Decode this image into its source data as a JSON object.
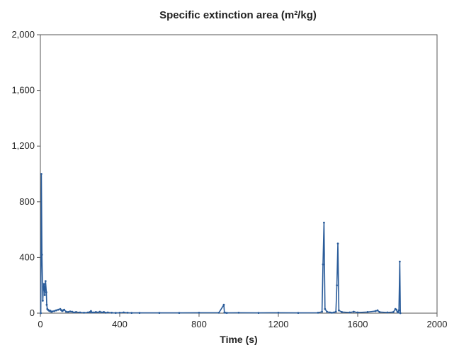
{
  "chart_data": {
    "type": "line",
    "title": "Specific extinction area (m²/kg)",
    "xlabel": "Time (s)",
    "ylabel": "",
    "xlim": [
      0,
      2000
    ],
    "ylim": [
      0,
      2000
    ],
    "x_ticks": [
      0,
      400,
      800,
      1200,
      1600,
      2000
    ],
    "x_tick_labels": [
      "0",
      "400",
      "800",
      "1200",
      "1600",
      "2000"
    ],
    "y_ticks": [
      0,
      400,
      800,
      1200,
      1600,
      2000
    ],
    "y_tick_labels": [
      "0",
      "400",
      "800",
      "1,200",
      "1,600",
      "2,000"
    ],
    "grid": false,
    "legend": "none",
    "series": [
      {
        "color": "#2a5c9a",
        "x": [
          2,
          5,
          8,
          12,
          15,
          18,
          22,
          26,
          30,
          32,
          35,
          38,
          42,
          46,
          50,
          55,
          60,
          70,
          80,
          90,
          100,
          105,
          110,
          115,
          120,
          130,
          140,
          150,
          160,
          170,
          180,
          200,
          220,
          240,
          250,
          255,
          260,
          270,
          280,
          290,
          300,
          310,
          320,
          330,
          340,
          360,
          380,
          400,
          420,
          440,
          460,
          500,
          600,
          700,
          800,
          900,
          925,
          928,
          932,
          940,
          1000,
          1100,
          1200,
          1300,
          1400,
          1420,
          1425,
          1430,
          1435,
          1445,
          1460,
          1470,
          1480,
          1490,
          1495,
          1500,
          1505,
          1520,
          1560,
          1580,
          1600,
          1650,
          1690,
          1700,
          1710,
          1750,
          1780,
          1790,
          1795,
          1800,
          1805,
          1808,
          1812,
          1815
        ],
        "y": [
          0,
          1000,
          420,
          90,
          180,
          210,
          130,
          230,
          150,
          60,
          30,
          25,
          20,
          15,
          18,
          10,
          12,
          15,
          20,
          25,
          30,
          22,
          15,
          20,
          25,
          10,
          8,
          12,
          10,
          5,
          8,
          5,
          3,
          5,
          8,
          15,
          5,
          5,
          8,
          5,
          10,
          5,
          8,
          3,
          5,
          3,
          2,
          3,
          5,
          3,
          2,
          2,
          2,
          2,
          3,
          3,
          60,
          5,
          3,
          2,
          3,
          2,
          3,
          2,
          3,
          10,
          350,
          650,
          30,
          10,
          5,
          3,
          5,
          10,
          200,
          500,
          20,
          8,
          5,
          10,
          5,
          8,
          15,
          20,
          8,
          5,
          8,
          30,
          25,
          10,
          5,
          20,
          370,
          0
        ]
      }
    ]
  }
}
